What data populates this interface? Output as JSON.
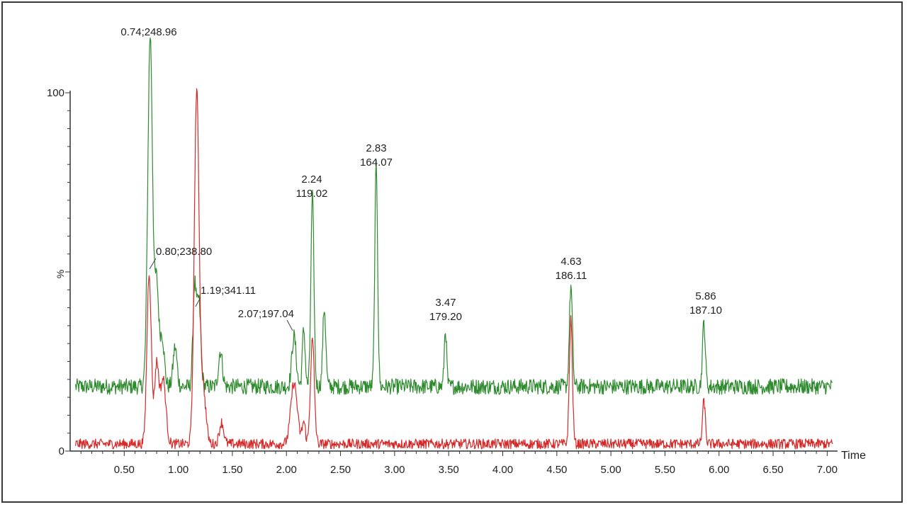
{
  "chart_data": {
    "type": "line",
    "xlabel": "Time",
    "ylabel": "%",
    "xlim": [
      0.0,
      7.05
    ],
    "ylim": [
      0,
      100
    ],
    "x_ticks": [
      "0.50",
      "1.00",
      "1.50",
      "2.00",
      "2.50",
      "3.00",
      "3.50",
      "4.00",
      "4.50",
      "5.00",
      "5.50",
      "6.00",
      "6.50",
      "7.00"
    ],
    "y_ticks": [
      "0",
      "100"
    ],
    "grid": false,
    "series": [
      {
        "color": "#2e8b2e",
        "baseline": 18,
        "noise": 2.2,
        "peaks": [
          {
            "x": 0.74,
            "h": 98,
            "w": 0.022
          },
          {
            "x": 0.8,
            "h": 28,
            "w": 0.018
          },
          {
            "x": 0.85,
            "h": 14,
            "w": 0.02
          },
          {
            "x": 0.97,
            "h": 11,
            "w": 0.018
          },
          {
            "x": 1.15,
            "h": 27,
            "w": 0.015
          },
          {
            "x": 1.19,
            "h": 24,
            "w": 0.018
          },
          {
            "x": 1.39,
            "h": 10,
            "w": 0.018
          },
          {
            "x": 2.07,
            "h": 14,
            "w": 0.02
          },
          {
            "x": 2.16,
            "h": 16,
            "w": 0.013
          },
          {
            "x": 2.24,
            "h": 53,
            "w": 0.014
          },
          {
            "x": 2.35,
            "h": 22,
            "w": 0.014
          },
          {
            "x": 2.83,
            "h": 62,
            "w": 0.013
          },
          {
            "x": 3.47,
            "h": 16,
            "w": 0.011
          },
          {
            "x": 4.63,
            "h": 28,
            "w": 0.014
          },
          {
            "x": 5.86,
            "h": 18,
            "w": 0.013
          }
        ]
      },
      {
        "color": "#d62a2a",
        "baseline": 2,
        "noise": 1.4,
        "peaks": [
          {
            "x": 0.73,
            "h": 48,
            "w": 0.02
          },
          {
            "x": 0.8,
            "h": 22,
            "w": 0.02
          },
          {
            "x": 0.86,
            "h": 18,
            "w": 0.025
          },
          {
            "x": 1.17,
            "h": 98,
            "w": 0.022
          },
          {
            "x": 1.23,
            "h": 15,
            "w": 0.025
          },
          {
            "x": 1.4,
            "h": 6,
            "w": 0.02
          },
          {
            "x": 2.07,
            "h": 17,
            "w": 0.03
          },
          {
            "x": 2.16,
            "h": 6,
            "w": 0.015
          },
          {
            "x": 2.24,
            "h": 29,
            "w": 0.018
          },
          {
            "x": 4.63,
            "h": 35,
            "w": 0.014
          },
          {
            "x": 5.86,
            "h": 12,
            "w": 0.013
          }
        ]
      }
    ],
    "annotations": [
      {
        "x": 0.74,
        "lines": [
          "0.74;248.96"
        ]
      },
      {
        "x": 0.8,
        "lines": [
          "0.80;238.80"
        ]
      },
      {
        "x": 1.19,
        "lines": [
          "1.19;341.11"
        ]
      },
      {
        "x": 2.07,
        "lines": [
          "2.07;197.04"
        ]
      },
      {
        "x": 2.24,
        "lines": [
          "2.24",
          "119.02"
        ]
      },
      {
        "x": 2.83,
        "lines": [
          "2.83",
          "164.07"
        ]
      },
      {
        "x": 3.47,
        "lines": [
          "3.47",
          "179.20"
        ]
      },
      {
        "x": 4.63,
        "lines": [
          "4.63",
          "186.11"
        ]
      },
      {
        "x": 5.86,
        "lines": [
          "5.86",
          "187.10"
        ]
      }
    ]
  }
}
